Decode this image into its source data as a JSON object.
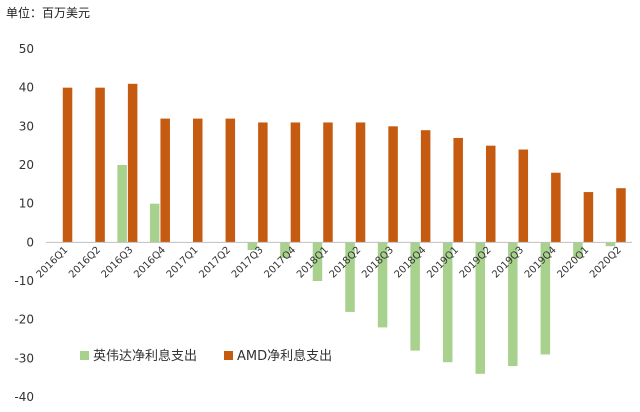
{
  "unit_label": "单位：百万美元",
  "chart_data": {
    "type": "bar",
    "title": "",
    "xlabel": "",
    "ylabel": "",
    "ylim": [
      -40,
      50
    ],
    "yticks": [
      -40,
      -30,
      -20,
      -10,
      0,
      10,
      20,
      30,
      40,
      50
    ],
    "grid": false,
    "legend_position": "bottom-left",
    "categories": [
      "2016Q1",
      "2016Q2",
      "2016Q3",
      "2016Q4",
      "2017Q1",
      "2017Q2",
      "2017Q3",
      "2017Q4",
      "2018Q1",
      "2018Q2",
      "2018Q3",
      "2018Q4",
      "2019Q1",
      "2019Q2",
      "2019Q3",
      "2019Q4",
      "2020Q1",
      "2020Q2"
    ],
    "series": [
      {
        "name": "英伟达净利息支出",
        "color": "#a9d18e",
        "values": [
          0,
          0,
          20,
          10,
          0,
          0,
          -2,
          -4,
          -10,
          -18,
          -22,
          -28,
          -31,
          -34,
          -32,
          -29,
          -4,
          -1
        ]
      },
      {
        "name": "AMD净利息支出",
        "color": "#c55a11",
        "values": [
          40,
          40,
          41,
          32,
          32,
          32,
          31,
          31,
          31,
          31,
          30,
          29,
          27,
          25,
          24,
          18,
          13,
          14
        ]
      }
    ]
  }
}
